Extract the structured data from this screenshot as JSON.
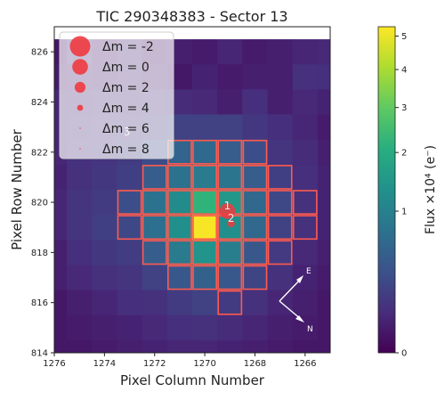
{
  "chart_data": {
    "type": "heatmap",
    "title": "TIC 290348383 - Sector 13",
    "xlabel": "Pixel Column Number",
    "ylabel": "Pixel Row Number",
    "x_axis_inverted": true,
    "xlim": [
      1276,
      1265
    ],
    "ylim": [
      814,
      827
    ],
    "x_ticks": [
      1276,
      1274,
      1272,
      1270,
      1268,
      1266
    ],
    "y_ticks": [
      814,
      816,
      818,
      820,
      822,
      824,
      826
    ],
    "pixel_columns_descending": [
      1276,
      1275,
      1274,
      1273,
      1272,
      1271,
      1270,
      1269,
      1268,
      1267,
      1266,
      1265
    ],
    "pixel_rows_descending": [
      826,
      825,
      824,
      823,
      822,
      821,
      820,
      819,
      818,
      817,
      816,
      815,
      814
    ],
    "flux_values_rows_top_to_bottom": [
      [
        0.02,
        0.1,
        0.03,
        0.06,
        0.02,
        0.04,
        0.03,
        0.06,
        0.03,
        0.04,
        0.06,
        0.07
      ],
      [
        0.03,
        0.05,
        0.04,
        0.06,
        0.04,
        0.02,
        0.05,
        0.03,
        0.04,
        0.04,
        0.1,
        0.09
      ],
      [
        0.06,
        0.06,
        0.08,
        0.08,
        0.09,
        0.08,
        0.07,
        0.04,
        0.09,
        0.04,
        0.07,
        0.05
      ],
      [
        0.06,
        0.08,
        0.1,
        0.12,
        0.15,
        0.2,
        0.2,
        0.2,
        0.14,
        0.09,
        0.06,
        0.03
      ],
      [
        0.06,
        0.1,
        0.12,
        0.16,
        0.28,
        0.55,
        0.6,
        0.45,
        0.3,
        0.12,
        0.08,
        0.04
      ],
      [
        0.05,
        0.1,
        0.14,
        0.18,
        0.45,
        0.75,
        0.9,
        0.8,
        0.45,
        0.18,
        0.09,
        0.05
      ],
      [
        0.06,
        0.12,
        0.16,
        0.3,
        0.75,
        1.2,
        2.2,
        1.5,
        0.6,
        0.25,
        0.1,
        0.05
      ],
      [
        0.06,
        0.12,
        0.18,
        0.25,
        0.7,
        1.3,
        5.2,
        1.3,
        0.6,
        0.2,
        0.1,
        0.05
      ],
      [
        0.04,
        0.09,
        0.14,
        0.17,
        0.45,
        0.9,
        1.4,
        0.95,
        0.4,
        0.15,
        0.07,
        0.04
      ],
      [
        0.04,
        0.07,
        0.1,
        0.12,
        0.2,
        0.4,
        0.5,
        0.4,
        0.22,
        0.1,
        0.05,
        0.03
      ],
      [
        0.02,
        0.04,
        0.06,
        0.09,
        0.1,
        0.16,
        0.2,
        0.16,
        0.1,
        0.06,
        0.04,
        0.02
      ],
      [
        0.02,
        0.03,
        0.04,
        0.05,
        0.07,
        0.09,
        0.1,
        0.08,
        0.06,
        0.04,
        0.03,
        0.02
      ],
      [
        0.02,
        0.02,
        0.03,
        0.04,
        0.05,
        0.06,
        0.06,
        0.05,
        0.04,
        0.03,
        0.02,
        0.02
      ]
    ],
    "aperture_pixels": [
      [
        1271,
        822
      ],
      [
        1270,
        822
      ],
      [
        1269,
        822
      ],
      [
        1268,
        822
      ],
      [
        1272,
        821
      ],
      [
        1271,
        821
      ],
      [
        1270,
        821
      ],
      [
        1269,
        821
      ],
      [
        1268,
        821
      ],
      [
        1267,
        821
      ],
      [
        1273,
        820
      ],
      [
        1272,
        820
      ],
      [
        1271,
        820
      ],
      [
        1270,
        820
      ],
      [
        1269,
        820
      ],
      [
        1268,
        820
      ],
      [
        1267,
        820
      ],
      [
        1266,
        820
      ],
      [
        1273,
        819
      ],
      [
        1272,
        819
      ],
      [
        1271,
        819
      ],
      [
        1270,
        819
      ],
      [
        1269,
        819
      ],
      [
        1268,
        819
      ],
      [
        1267,
        819
      ],
      [
        1266,
        819
      ],
      [
        1272,
        818
      ],
      [
        1271,
        818
      ],
      [
        1270,
        818
      ],
      [
        1269,
        818
      ],
      [
        1268,
        818
      ],
      [
        1267,
        818
      ],
      [
        1271,
        817
      ],
      [
        1270,
        817
      ],
      [
        1269,
        817
      ],
      [
        1268,
        817
      ],
      [
        1269,
        816
      ]
    ],
    "legend": {
      "placement": "top-left",
      "entries": [
        {
          "label": "Δm = -2",
          "dm": -2
        },
        {
          "label": "Δm =  0",
          "dm": 0
        },
        {
          "label": "Δm =  2",
          "dm": 2
        },
        {
          "label": "Δm =  4",
          "dm": 4
        },
        {
          "label": "Δm =  6",
          "dm": 6
        },
        {
          "label": "Δm =  8",
          "dm": 8
        }
      ]
    },
    "stars": [
      {
        "label": "1",
        "x": 1269.1,
        "y": 819.65,
        "dm": 0
      },
      {
        "label": "2",
        "x": 1268.95,
        "y": 819.15,
        "dm": 3.5
      },
      {
        "label": "3",
        "x": 1273.1,
        "y": 822.6,
        "dm": 9
      }
    ],
    "compass": {
      "east_label": "E",
      "north_label": "N"
    },
    "colorbar": {
      "label": "Flux ×10⁴ (e⁻)",
      "scale": "sqrt",
      "range": [
        0,
        5.3
      ],
      "ticks": [
        {
          "value": 0,
          "label": "0"
        },
        {
          "value": 1,
          "label": "1"
        },
        {
          "value": 2,
          "label": "2"
        },
        {
          "value": 3,
          "label": "3"
        },
        {
          "value": 4,
          "label": "4"
        },
        {
          "value": 5,
          "label": "5"
        }
      ]
    },
    "colors": {
      "aperture": "#ff5a4e",
      "star_marker": "#ef3a40",
      "label_text": "#ffffff"
    }
  }
}
